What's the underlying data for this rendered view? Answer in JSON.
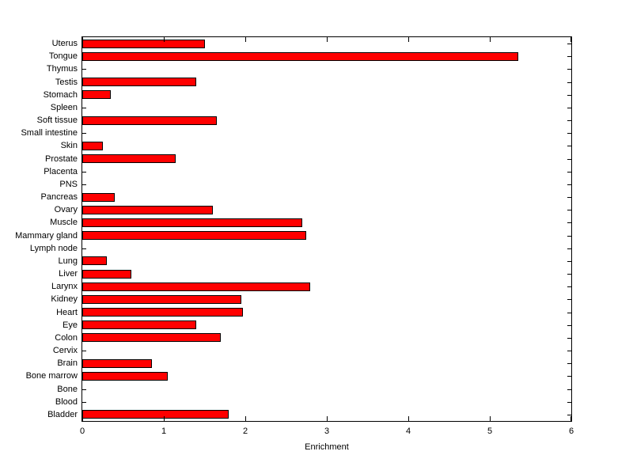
{
  "chart_data": {
    "type": "bar",
    "orientation": "horizontal",
    "title": "",
    "xlabel": "Enrichment",
    "ylabel": "",
    "xlim": [
      0,
      6
    ],
    "xticks": [
      0,
      1,
      2,
      3,
      4,
      5,
      6
    ],
    "grid": false,
    "legend": false,
    "bar_color": "#ff0000",
    "bar_edge_color": "#000000",
    "categories": [
      "Uterus",
      "Tongue",
      "Thymus",
      "Testis",
      "Stomach",
      "Spleen",
      "Soft tissue",
      "Small intestine",
      "Skin",
      "Prostate",
      "Placenta",
      "PNS",
      "Pancreas",
      "Ovary",
      "Muscle",
      "Mammary gland",
      "Lymph node",
      "Lung",
      "Liver",
      "Larynx",
      "Kidney",
      "Heart",
      "Eye",
      "Colon",
      "Cervix",
      "Brain",
      "Bone marrow",
      "Bone",
      "Blood",
      "Bladder"
    ],
    "values": [
      1.5,
      5.35,
      0,
      1.4,
      0.35,
      0,
      1.65,
      0,
      0.25,
      1.15,
      0,
      0,
      0.4,
      1.6,
      2.7,
      2.75,
      0,
      0.3,
      0.6,
      2.8,
      1.95,
      1.97,
      1.4,
      1.7,
      0,
      0.85,
      1.05,
      0,
      0,
      1.8
    ]
  }
}
